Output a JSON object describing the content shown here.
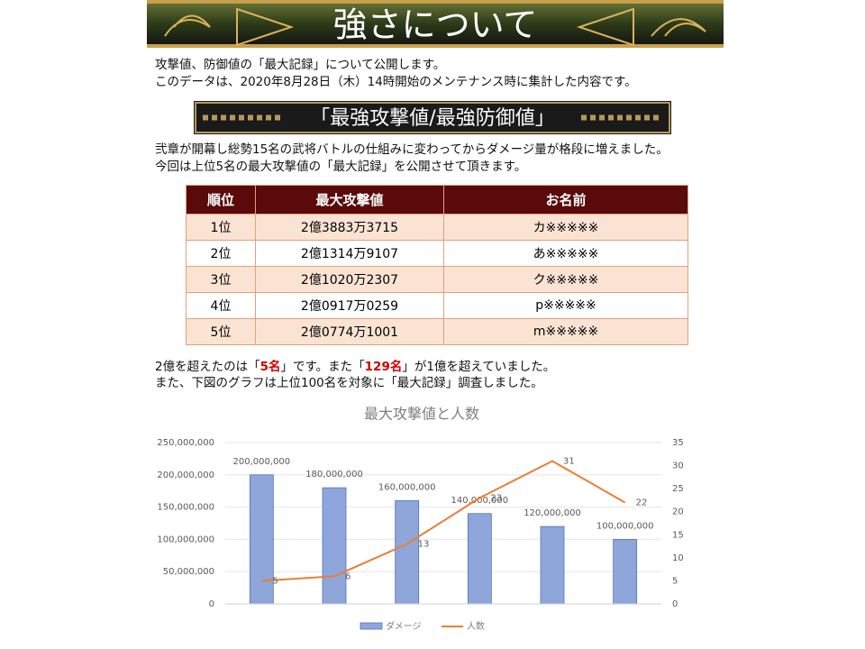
{
  "header": {
    "title": "強さについて"
  },
  "intro": [
    "攻撃値、防御値の「最大記録」について公開します。",
    "このデータは、2020年8月28日（木）14時開始のメンテナンス時に集計した内容です。"
  ],
  "section": {
    "title": "「最強攻撃値/最強防御値」",
    "text": [
      "弐章が開幕し総勢15名の武将バトルの仕組みに変わってからダメージ量が格段に増えました。",
      "今回は上位5名の最大攻撃値の「最大記録」を公開させて頂きます。"
    ]
  },
  "table": {
    "columns": [
      "順位",
      "最大攻撃値",
      "お名前"
    ],
    "rows": [
      [
        "1位",
        "2億3883万3715",
        "カ※※※※※"
      ],
      [
        "2位",
        "2億1314万9107",
        "あ※※※※※"
      ],
      [
        "3位",
        "2億1020万2307",
        "ク※※※※※"
      ],
      [
        "4位",
        "2億0917万0259",
        "p※※※※※"
      ],
      [
        "5位",
        "2億0774万1001",
        "m※※※※※"
      ]
    ]
  },
  "note": [
    [
      {
        "text": "2億を超えたのは「"
      },
      {
        "text": "5名",
        "color": "#d00000"
      },
      {
        "text": "」です。また「"
      },
      {
        "text": "129名",
        "color": "#d00000"
      },
      {
        "text": "」が1億を超えていました。"
      }
    ],
    [
      {
        "text": "また、下図のグラフは上位100名を対象に「最大記録」調査しました。"
      }
    ]
  ],
  "chart_data": {
    "type": "bar",
    "title": "最大攻撃値と人数",
    "categories": [
      null,
      null,
      null,
      null,
      null,
      null
    ],
    "series": [
      {
        "name": "ダメージ",
        "type": "bar",
        "color": "#8fa6da",
        "values": [
          200000000,
          180000000,
          160000000,
          140000000,
          120000000,
          100000000
        ],
        "value_labels": [
          "200,000,000",
          "180,000,000",
          "160,000,000",
          "140,000,000",
          "120,000,000",
          "100,000,000"
        ]
      },
      {
        "name": "人数",
        "type": "line",
        "axis": "y2",
        "color": "#ed7d31",
        "values": [
          5,
          6,
          13,
          23,
          31,
          22
        ]
      }
    ],
    "ylim": [
      0,
      250000000
    ],
    "yticks": [
      0,
      {
        "value": 50000000,
        "label": "50,000,000"
      },
      {
        "value": 100000000,
        "label": "100,000,000"
      },
      {
        "value": 150000000,
        "label": "150,000,000"
      },
      {
        "value": 200000000,
        "label": "200,000,000"
      },
      {
        "value": 250000000,
        "label": "250,000,000"
      }
    ],
    "y2lim": [
      0,
      35
    ],
    "y2ticks": [
      0,
      5,
      10,
      15,
      20,
      25,
      30,
      35
    ],
    "grid": true,
    "legend": "bottom"
  }
}
